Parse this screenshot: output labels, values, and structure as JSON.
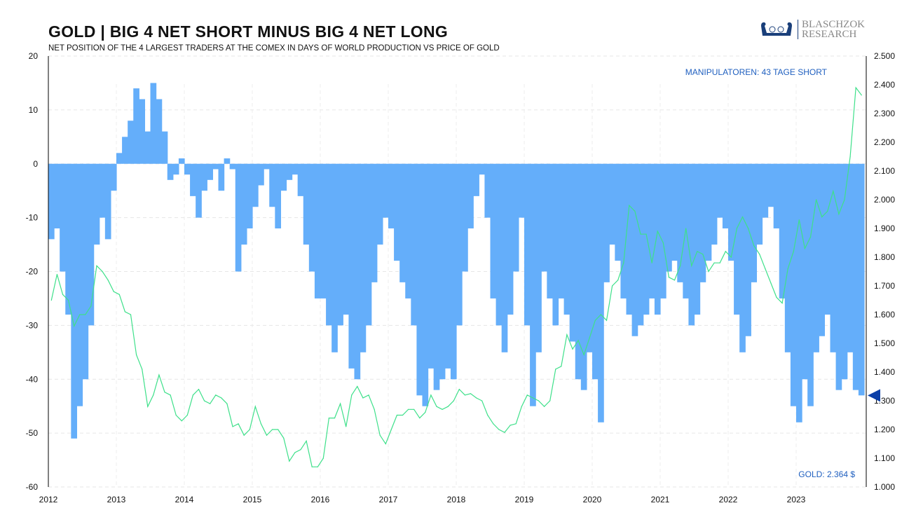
{
  "header": {
    "title": "GOLD | BIG 4 NET SHORT MINUS BIG 4 NET LONG",
    "subtitle": "NET POSITION OF THE 4 LARGEST TRADERS AT THE COMEX IN DAYS OF WORLD PRODUCTION VS PRICE OF GOLD"
  },
  "logo": {
    "line1": "BLASCHZOK",
    "line2": "RESEARCH"
  },
  "chart_data": {
    "type": "bar+line",
    "annotations": {
      "top": "MANIPULATOREN: 43 TAGE SHORT",
      "bottom": "GOLD: 2.364 $"
    },
    "current_position": -43,
    "x_ticks": [
      "2012",
      "2013",
      "2014",
      "2015",
      "2016",
      "2017",
      "2018",
      "2019",
      "2020",
      "2021",
      "2022",
      "2023"
    ],
    "y_left": {
      "ylim": [
        -60,
        20
      ],
      "ticks": [
        20,
        10,
        0,
        -10,
        -20,
        -30,
        -40,
        -50,
        -60
      ]
    },
    "y_right": {
      "ylim": [
        1000,
        2500
      ],
      "ticks": [
        "2.500",
        "2.400",
        "2.300",
        "2.200",
        "2.100",
        "2.000",
        "1.900",
        "1.800",
        "1.700",
        "1.600",
        "1.500",
        "1.400",
        "1.300",
        "1.200",
        "1.100",
        "1.000"
      ]
    },
    "grid": true,
    "colors": {
      "bars": "#64aefa",
      "line": "#3ee08a",
      "annotation": "#1f5fbf",
      "marker": "#0b3fa8"
    },
    "x_start": "2012-01",
    "x_step": "month",
    "series": [
      {
        "kind": "bar",
        "axis": "left",
        "values": [
          -14,
          -12,
          -20,
          -28,
          -51,
          -45,
          -40,
          -30,
          -15,
          -10,
          -14,
          -5,
          2,
          5,
          8,
          14,
          12,
          6,
          15,
          12,
          6,
          -3,
          -2,
          1,
          -2,
          -6,
          -10,
          -5,
          -3,
          -1,
          -5,
          1,
          -1,
          -20,
          -15,
          -12,
          -8,
          -4,
          -1,
          -8,
          -12,
          -5,
          -3,
          -2,
          -6,
          -15,
          -20,
          -25,
          -25,
          -30,
          -35,
          -30,
          -28,
          -38,
          -40,
          -35,
          -30,
          -22,
          -15,
          -10,
          -12,
          -18,
          -22,
          -25,
          -30,
          -43,
          -45,
          -38,
          -42,
          -40,
          -38,
          -40,
          -30,
          -20,
          -12,
          -6,
          -2,
          -10,
          -25,
          -30,
          -35,
          -28,
          -20,
          -10,
          -30,
          -45,
          -35,
          -20,
          -25,
          -30,
          -25,
          -28,
          -33,
          -40,
          -42,
          -35,
          -40,
          -48,
          -22,
          -15,
          -18,
          -25,
          -28,
          -32,
          -30,
          -28,
          -25,
          -28,
          -25,
          -20,
          -18,
          -22,
          -25,
          -30,
          -28,
          -22,
          -18,
          -15,
          -10,
          -12,
          -18,
          -28,
          -35,
          -32,
          -22,
          -15,
          -10,
          -8,
          -12,
          -25,
          -35,
          -45,
          -48,
          -40,
          -45,
          -35,
          -32,
          -28,
          -35,
          -42,
          -40,
          -35,
          -42,
          -43
        ]
      },
      {
        "kind": "line",
        "axis": "right",
        "values": [
          1650,
          1740,
          1670,
          1650,
          1560,
          1600,
          1600,
          1630,
          1770,
          1750,
          1720,
          1680,
          1670,
          1610,
          1600,
          1460,
          1410,
          1280,
          1320,
          1390,
          1330,
          1320,
          1250,
          1230,
          1250,
          1320,
          1340,
          1300,
          1290,
          1320,
          1310,
          1290,
          1210,
          1220,
          1180,
          1200,
          1280,
          1220,
          1180,
          1200,
          1200,
          1170,
          1090,
          1120,
          1130,
          1160,
          1070,
          1070,
          1100,
          1240,
          1240,
          1290,
          1210,
          1320,
          1350,
          1310,
          1320,
          1270,
          1180,
          1150,
          1200,
          1250,
          1250,
          1270,
          1270,
          1240,
          1260,
          1320,
          1280,
          1270,
          1280,
          1300,
          1340,
          1320,
          1325,
          1310,
          1300,
          1250,
          1220,
          1200,
          1190,
          1215,
          1220,
          1280,
          1320,
          1310,
          1300,
          1280,
          1300,
          1410,
          1420,
          1530,
          1480,
          1510,
          1460,
          1520,
          1580,
          1600,
          1580,
          1700,
          1720,
          1780,
          1980,
          1960,
          1880,
          1880,
          1780,
          1890,
          1850,
          1730,
          1720,
          1770,
          1900,
          1770,
          1820,
          1810,
          1750,
          1780,
          1780,
          1820,
          1800,
          1900,
          1940,
          1900,
          1840,
          1810,
          1760,
          1710,
          1660,
          1640,
          1760,
          1820,
          1930,
          1830,
          1870,
          2000,
          1940,
          1960,
          2030,
          1950,
          2000,
          2150,
          2390,
          2364
        ]
      }
    ]
  }
}
